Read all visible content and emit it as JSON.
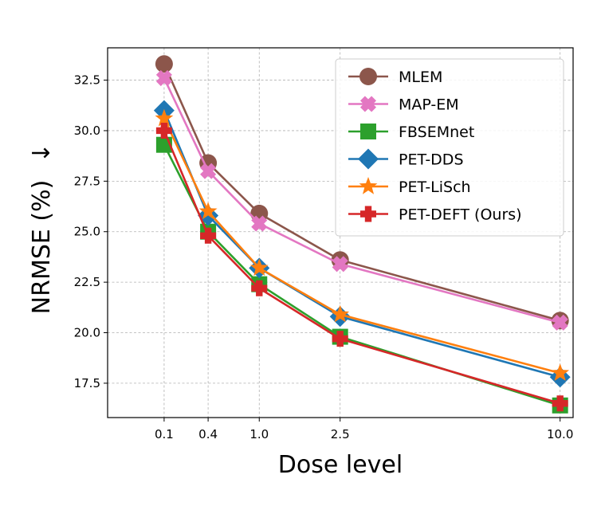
{
  "chart_data": {
    "type": "line",
    "title": "",
    "xlabel": "Dose level",
    "ylabel": "NRMSE (%)",
    "ylabel_suffix": "↓",
    "x_ticks": [
      0.1,
      0.4,
      1.0,
      2.5,
      10.0
    ],
    "x_tick_labels": [
      "0.1",
      "0.4",
      "1.0",
      "2.5",
      "10.0"
    ],
    "y_ticks": [
      17.5,
      20.0,
      22.5,
      25.0,
      27.5,
      30.0,
      32.5
    ],
    "y_tick_labels": [
      "17.5",
      "20.0",
      "22.5",
      "25.0",
      "27.5",
      "30.0",
      "32.5"
    ],
    "ylim": [
      15.8,
      34.1
    ],
    "grid": true,
    "legend_position": "upper-right",
    "x": [
      0.1,
      0.4,
      1.0,
      2.5,
      10.0
    ],
    "series": [
      {
        "name": "MLEM",
        "color": "#8c564b",
        "marker": "circle",
        "values": [
          33.3,
          28.4,
          25.9,
          23.6,
          20.6
        ]
      },
      {
        "name": "MAP-EM",
        "color": "#e377c2",
        "marker": "x",
        "values": [
          32.6,
          28.0,
          25.4,
          23.4,
          20.5
        ]
      },
      {
        "name": "FBSEMnet",
        "color": "#2ca02c",
        "marker": "square",
        "values": [
          29.3,
          25.0,
          22.4,
          19.8,
          16.4
        ]
      },
      {
        "name": "PET-DDS",
        "color": "#1f77b4",
        "marker": "diamond",
        "values": [
          31.0,
          25.8,
          23.2,
          20.8,
          17.8
        ]
      },
      {
        "name": "PET-LiSch",
        "color": "#ff7f0e",
        "marker": "star",
        "values": [
          30.6,
          26.0,
          23.2,
          20.9,
          18.0
        ]
      },
      {
        "name": "PET-DEFT (Ours)",
        "color": "#d62728",
        "marker": "plus",
        "values": [
          30.0,
          24.8,
          22.2,
          19.7,
          16.5
        ]
      }
    ]
  }
}
